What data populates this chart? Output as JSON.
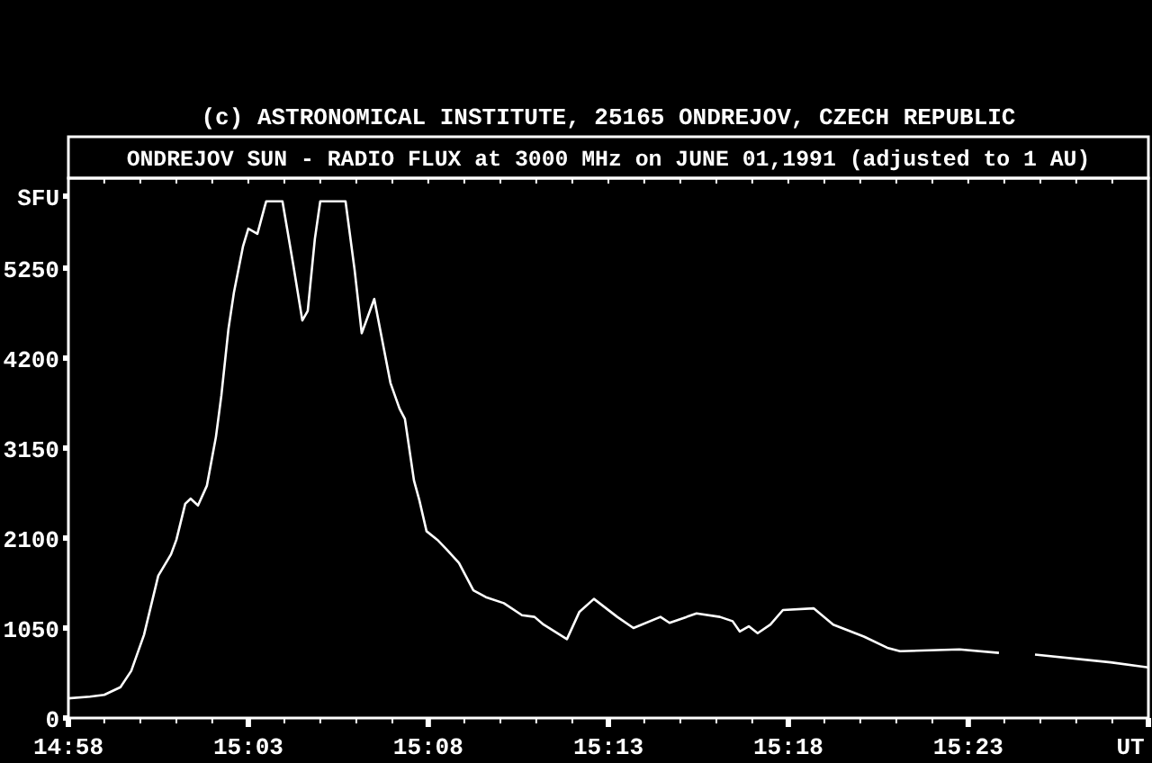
{
  "chart_data": {
    "type": "line",
    "title": "ONDREJOV SUN - RADIO FLUX at 3000 MHz on JUNE 01,1991 (adjusted to 1 AU)",
    "annotations": [
      "(c) ASTRONOMICAL INSTITUTE, 25165 ONDREJOV, CZECH REPUBLIC"
    ],
    "x": [
      14.9667,
      14.9767,
      14.9833,
      14.9908,
      14.9958,
      15.0017,
      15.0083,
      15.0142,
      15.0167,
      15.0208,
      15.0233,
      15.0267,
      15.0308,
      15.035,
      15.0375,
      15.0408,
      15.0433,
      15.0475,
      15.05,
      15.0542,
      15.0575,
      15.0583,
      15.0658,
      15.0708,
      15.075,
      15.0775,
      15.0808,
      15.0833,
      15.095,
      15.0992,
      15.1025,
      15.1083,
      15.1158,
      15.12,
      15.1225,
      15.1267,
      15.1292,
      15.1325,
      15.1375,
      15.1417,
      15.1475,
      15.1542,
      15.16,
      15.1683,
      15.1767,
      15.1825,
      15.1867,
      15.1975,
      15.2033,
      15.21,
      15.2208,
      15.2283,
      15.2408,
      15.245,
      15.2575,
      15.2683,
      15.2742,
      15.2775,
      15.2817,
      15.2858,
      15.2917,
      15.2975,
      15.3117,
      15.3208,
      15.335,
      15.3458,
      15.3517,
      15.3792,
      15.3975,
      15.4058,
      15.4142,
      15.4492,
      15.4667
    ],
    "series": [
      {
        "color": "#ffffff",
        "values": [
          230,
          250,
          270,
          360,
          550,
          970,
          1660,
          1910,
          2080,
          2500,
          2560,
          2480,
          2710,
          3280,
          3760,
          4540,
          4960,
          5500,
          5710,
          5650,
          5960,
          6030,
          6030,
          5290,
          4640,
          4750,
          5590,
          6030,
          6030,
          5230,
          4490,
          4890,
          3910,
          3610,
          3490,
          2770,
          2540,
          2180,
          2080,
          1970,
          1810,
          1490,
          1410,
          1340,
          1200,
          1180,
          1090,
          920,
          1240,
          1390,
          1180,
          1050,
          1180,
          1110,
          1220,
          1180,
          1130,
          1010,
          1070,
          990,
          1090,
          1260,
          1280,
          1090,
          950,
          820,
          780,
          800,
          760,
          null,
          740,
          650,
          590
        ]
      }
    ],
    "xlim": [
      14.9667,
      15.4667
    ],
    "xticks": [
      {
        "value": 14.9667,
        "label": "14:58"
      },
      {
        "value": 14.9833,
        "label": null
      },
      {
        "value": 15,
        "label": null
      },
      {
        "value": 15.0167,
        "label": null
      },
      {
        "value": 15.0333,
        "label": null
      },
      {
        "value": 15.05,
        "label": "15:03"
      },
      {
        "value": 15.0667,
        "label": null
      },
      {
        "value": 15.0833,
        "label": null
      },
      {
        "value": 15.1,
        "label": null
      },
      {
        "value": 15.1167,
        "label": null
      },
      {
        "value": 15.1333,
        "label": "15:08"
      },
      {
        "value": 15.15,
        "label": null
      },
      {
        "value": 15.1667,
        "label": null
      },
      {
        "value": 15.1833,
        "label": null
      },
      {
        "value": 15.2,
        "label": null
      },
      {
        "value": 15.2167,
        "label": "15:13"
      },
      {
        "value": 15.2333,
        "label": null
      },
      {
        "value": 15.25,
        "label": null
      },
      {
        "value": 15.2667,
        "label": null
      },
      {
        "value": 15.2833,
        "label": null
      },
      {
        "value": 15.3,
        "label": "15:18"
      },
      {
        "value": 15.3167,
        "label": null
      },
      {
        "value": 15.3333,
        "label": null
      },
      {
        "value": 15.35,
        "label": null
      },
      {
        "value": 15.3667,
        "label": null
      },
      {
        "value": 15.3833,
        "label": "15:23"
      },
      {
        "value": 15.4,
        "label": null
      },
      {
        "value": 15.4167,
        "label": null
      },
      {
        "value": 15.4333,
        "label": null
      },
      {
        "value": 15.45,
        "label": null
      },
      {
        "value": 15.4667,
        "label": "UT"
      }
    ],
    "ylim": [
      0,
      6300
    ],
    "yticks": [
      0,
      1050,
      2100,
      3150,
      4200,
      5250,
      {
        "value": 6090,
        "label": "SFU"
      }
    ],
    "grid": false,
    "marker": "none",
    "line_style": "solid"
  }
}
